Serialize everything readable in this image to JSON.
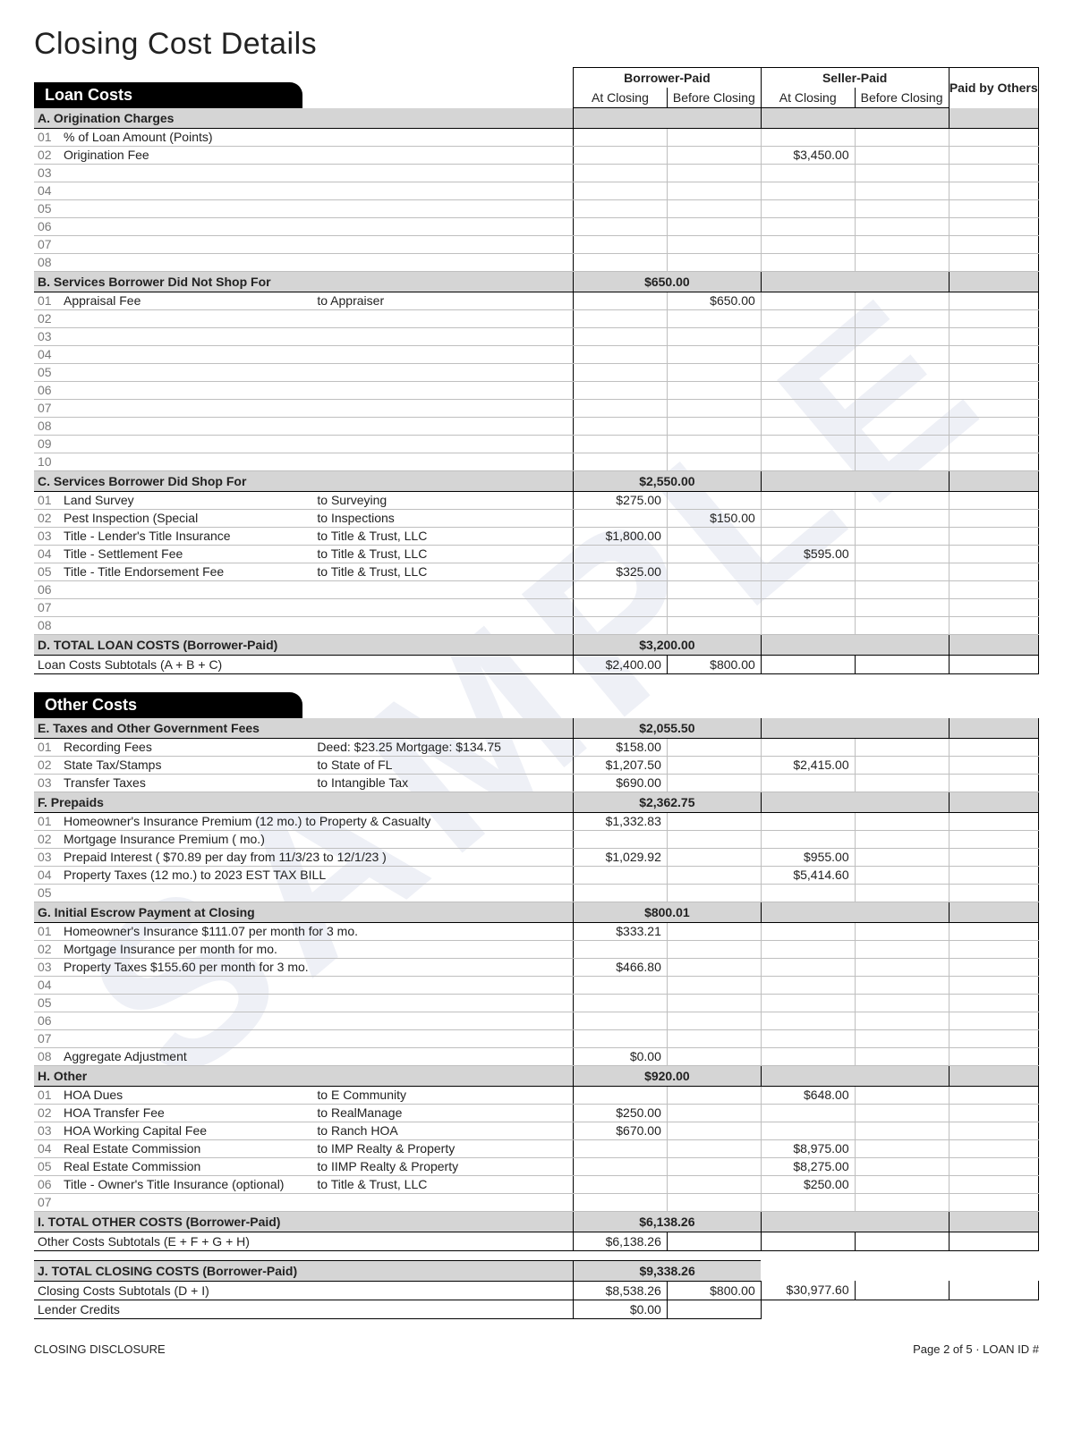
{
  "page": {
    "title": "Closing Cost Details",
    "footer_left": "CLOSING DISCLOSURE",
    "footer_right": "Page 2 of 5 · LOAN ID #"
  },
  "headers": {
    "loan_costs": "Loan Costs",
    "other_costs": "Other Costs",
    "borrower_paid": "Borrower-Paid",
    "seller_paid": "Seller-Paid",
    "paid_by_others": "Paid by Others",
    "at_closing": "At Closing",
    "before_closing": "Before Closing"
  },
  "loan": {
    "A": {
      "label": "A. Origination Charges",
      "rows": [
        {
          "n": "01",
          "desc": "% of Loan Amount (Points)"
        },
        {
          "n": "02",
          "desc": "Origination Fee",
          "sp_at": "$3,450.00"
        },
        {
          "n": "03"
        },
        {
          "n": "04"
        },
        {
          "n": "05"
        },
        {
          "n": "06"
        },
        {
          "n": "07"
        },
        {
          "n": "08"
        }
      ]
    },
    "B": {
      "label": "B. Services Borrower Did Not Shop For",
      "header_amt": "$650.00",
      "rows": [
        {
          "n": "01",
          "desc": "Appraisal Fee",
          "payee": "to Appraiser",
          "bp_bf": "$650.00"
        },
        {
          "n": "02"
        },
        {
          "n": "03"
        },
        {
          "n": "04"
        },
        {
          "n": "05"
        },
        {
          "n": "06"
        },
        {
          "n": "07"
        },
        {
          "n": "08"
        },
        {
          "n": "09"
        },
        {
          "n": "10"
        }
      ]
    },
    "C": {
      "label": "C. Services Borrower Did Shop For",
      "header_amt": "$2,550.00",
      "rows": [
        {
          "n": "01",
          "desc": "Land Survey",
          "payee": "to  Surveying",
          "bp_at": "$275.00"
        },
        {
          "n": "02",
          "desc": "Pest Inspection (Special",
          "payee": "to  Inspections",
          "bp_bf": "$150.00"
        },
        {
          "n": "03",
          "desc": "Title - Lender's Title Insurance",
          "payee": "to Title & Trust, LLC",
          "bp_at": "$1,800.00"
        },
        {
          "n": "04",
          "desc": "Title - Settlement Fee",
          "payee": "to Title & Trust, LLC",
          "sp_at": "$595.00"
        },
        {
          "n": "05",
          "desc": "Title - Title Endorsement Fee",
          "payee": "to Title & Trust, LLC",
          "bp_at": "$325.00"
        },
        {
          "n": "06"
        },
        {
          "n": "07"
        },
        {
          "n": "08"
        }
      ]
    },
    "D": {
      "label": "D. TOTAL LOAN COSTS (Borrower-Paid)",
      "header_amt": "$3,200.00",
      "sub_label": "Loan Costs Subtotals (A + B + C)",
      "sub_bp_at": "$2,400.00",
      "sub_bp_bf": "$800.00"
    }
  },
  "other": {
    "E": {
      "label": "E. Taxes and Other Government Fees",
      "header_amt": "$2,055.50",
      "rows": [
        {
          "n": "01",
          "desc": "Recording Fees",
          "payee": "Deed: $23.25        Mortgage: $134.75",
          "bp_at": "$158.00"
        },
        {
          "n": "02",
          "desc": "State Tax/Stamps",
          "payee": "to State of FL",
          "bp_at": "$1,207.50",
          "sp_at": "$2,415.00"
        },
        {
          "n": "03",
          "desc": "Transfer Taxes",
          "payee": "to Intangible Tax",
          "bp_at": "$690.00"
        }
      ]
    },
    "F": {
      "label": "F. Prepaids",
      "header_amt": "$2,362.75",
      "rows": [
        {
          "n": "01",
          "desc": "Homeowner's Insurance Premium (12 mo.) to  Property & Casualty",
          "bp_at": "$1,332.83"
        },
        {
          "n": "02",
          "desc": "Mortgage Insurance Premium (   mo.)"
        },
        {
          "n": "03",
          "desc": "Prepaid Interest ( $70.89 per day from 11/3/23 to 12/1/23 )",
          "bp_at": "$1,029.92",
          "sp_at": "$955.00"
        },
        {
          "n": "04",
          "desc": "Property Taxes (12 mo.) to 2023 EST TAX BILL",
          "sp_at": "$5,414.60"
        },
        {
          "n": "05"
        }
      ]
    },
    "G": {
      "label": "G. Initial Escrow Payment at Closing",
      "header_amt": "$800.01",
      "rows": [
        {
          "n": "01",
          "desc": "Homeowner's Insurance    $111.07 per month for 3 mo.",
          "bp_at": "$333.21"
        },
        {
          "n": "02",
          "desc": "Mortgage Insurance                      per month for   mo."
        },
        {
          "n": "03",
          "desc": "Property Taxes             $155.60 per month for 3 mo.",
          "bp_at": "$466.80"
        },
        {
          "n": "04"
        },
        {
          "n": "05"
        },
        {
          "n": "06"
        },
        {
          "n": "07"
        },
        {
          "n": "08",
          "desc": "Aggregate Adjustment",
          "bp_at": "$0.00"
        }
      ]
    },
    "H": {
      "label": "H. Other",
      "header_amt": "$920.00",
      "rows": [
        {
          "n": "01",
          "desc": "HOA Dues",
          "payee": "to E Community",
          "sp_at": "$648.00"
        },
        {
          "n": "02",
          "desc": "HOA Transfer Fee",
          "payee": "to RealManage",
          "bp_at": "$250.00"
        },
        {
          "n": "03",
          "desc": "HOA Working Capital Fee",
          "payee": "to Ranch HOA",
          "bp_at": "$670.00"
        },
        {
          "n": "04",
          "desc": "Real Estate Commission",
          "payee": "to IMP Realty & Property",
          "sp_at": "$8,975.00"
        },
        {
          "n": "05",
          "desc": "Real Estate Commission",
          "payee": "to IIMP Realty & Property",
          "sp_at": "$8,275.00"
        },
        {
          "n": "06",
          "desc": "Title - Owner's Title Insurance (optional)",
          "payee": "to Title & Trust, LLC",
          "sp_at": "$250.00"
        },
        {
          "n": "07"
        }
      ]
    },
    "I": {
      "label": "I.  TOTAL OTHER COSTS (Borrower-Paid)",
      "header_amt": "$6,138.26",
      "sub_label": "Other Costs Subtotals (E + F + G + H)",
      "sub_bp_at": "$6,138.26"
    }
  },
  "J": {
    "label": "J. TOTAL CLOSING COSTS (Borrower-Paid)",
    "header_amt": "$9,338.26",
    "sub_label": "Closing Costs Subtotals (D + I)",
    "sub_bp_at": "$8,538.26",
    "sub_bp_bf": "$800.00",
    "sub_sp_at": "$30,977.60",
    "lender_label": "Lender Credits",
    "lender_bp_at": "$0.00"
  }
}
